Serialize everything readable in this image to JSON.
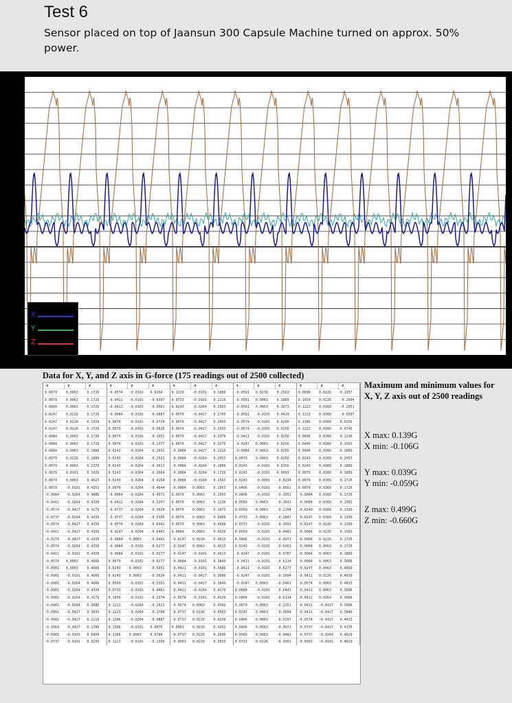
{
  "header": {
    "title": "Test 6",
    "description": "Sensor placed on top of Jaansun 300 Capsule Machine turned on approx. 50% power."
  },
  "chart_data": {
    "type": "line",
    "title": "",
    "xlabel": "",
    "ylabel": "",
    "grid": true,
    "legend_position": "bottom-left",
    "series": [
      {
        "name": "X",
        "color": "#1b1b8c",
        "description_values": {
          "max": 0.139,
          "min": -0.106
        }
      },
      {
        "name": "Y",
        "color": "#2aa8a8",
        "description_values": {
          "max": 0.039,
          "min": -0.059
        }
      },
      {
        "name": "Z",
        "color": "#a0683a",
        "description_values": {
          "max": 0.499,
          "min": -0.66
        }
      }
    ]
  },
  "legend": {
    "items": [
      {
        "label": "X",
        "color": "#2b3bd6"
      },
      {
        "label": "Y",
        "color": "#2fb34a"
      },
      {
        "label": "Z",
        "color": "#e03030"
      }
    ]
  },
  "table": {
    "caption": "Data for X, Y, and Z axis in G-force (175 readings out of 2500 collected)",
    "headers": [
      "x",
      "y",
      "z",
      "x",
      "y",
      "z",
      "x",
      "y",
      "z",
      "x",
      "y",
      "z",
      "x",
      "y",
      "z"
    ],
    "rows": [
      [
        "0.0079",
        "0.0063",
        "0.1726",
        "-0.0574",
        "-0.0101",
        "0.0294",
        "0.1229",
        "-0.0101",
        "0.1889",
        "-0.0501",
        "0.0236",
        "0.2563",
        "0.0896",
        "0.0226",
        "0.1357"
      ],
      [
        "0.0079",
        "0.0063",
        "0.1726",
        "-0.0411",
        "-0.0101",
        "-0.0397",
        "0.0733",
        "-0.0101",
        "0.2216",
        "-0.0501",
        "0.0063",
        "0.1889",
        "0.1059",
        "0.0226",
        "-0.2604"
      ],
      [
        "0.0084",
        "0.0063",
        "0.1726",
        "-0.0411",
        "-0.0101",
        "-0.0561",
        "0.0243",
        "-0.0264",
        "0.2563",
        "-0.0501",
        "0.0063",
        "0.1073",
        "0.1223",
        "0.0389",
        "-0.2051"
      ],
      [
        "0.0247",
        "0.0226",
        "0.1726",
        "-0.0084",
        "-0.0101",
        "-0.0887",
        "0.0079",
        "-0.0427",
        "0.2705",
        "-0.0501",
        "-0.0101",
        "0.0419",
        "0.1223",
        "0.0389",
        "-0.0397"
      ],
      [
        "0.0247",
        "0.0226",
        "0.1339",
        "0.0079",
        "-0.0101",
        "-0.0724",
        "0.0079",
        "-0.0427",
        "0.2563",
        "-0.0574",
        "-0.0101",
        "0.0200",
        "0.1386",
        "0.0389",
        "0.0256"
      ],
      [
        "0.0247",
        "0.0226",
        "0.1726",
        "0.0079",
        "-0.0101",
        "-0.0928",
        "0.0079",
        "-0.0427",
        "0.2563",
        "-0.0574",
        "-0.0101",
        "0.0256",
        "0.1223",
        "0.0389",
        "0.0746"
      ],
      [
        "0.0084",
        "0.0063",
        "0.1726",
        "0.0079",
        "-0.0101",
        "-0.1051",
        "0.0079",
        "-0.0427",
        "0.3379",
        "-0.0411",
        "-0.0101",
        "0.0256",
        "0.0896",
        "0.0389",
        "0.1236"
      ],
      [
        "0.0084",
        "0.0063",
        "0.1726",
        "0.0079",
        "-0.0101",
        "-0.1377",
        "0.0079",
        "-0.0427",
        "0.3379",
        "-0.0247",
        "0.0063",
        "0.0256",
        "0.0406",
        "0.0389",
        "0.1563"
      ],
      [
        "0.0084",
        "0.0063",
        "0.1889",
        "0.0243",
        "-0.0264",
        "-0.2031",
        "-0.0084",
        "-0.0427",
        "0.2216",
        "-0.0084",
        "0.0063",
        "0.0256",
        "0.0406",
        "0.0389",
        "0.1889"
      ],
      [
        "0.0079",
        "0.0226",
        "0.1889",
        "0.0243",
        "-0.0264",
        "-0.2521",
        "-0.0084",
        "-0.0264",
        "0.2053",
        "0.0079",
        "0.0063",
        "0.0256",
        "0.0243",
        "0.0389",
        "0.2053"
      ],
      [
        "0.0079",
        "0.0063",
        "0.2379",
        "0.0243",
        "-0.0264",
        "-0.3011",
        "-0.0084",
        "-0.0264",
        "0.1889",
        "0.0243",
        "-0.0101",
        "0.0256",
        "0.0243",
        "0.0389",
        "0.1889"
      ],
      [
        "0.0079",
        "0.0101",
        "0.1929",
        "0.0243",
        "-0.0264",
        "-0.3664",
        "-0.0084",
        "-0.0264",
        "0.1726",
        "0.0243",
        "-0.0101",
        "0.0093",
        "0.0079",
        "0.0389",
        "0.1889"
      ],
      [
        "0.0079",
        "0.0063",
        "0.4623",
        "0.0243",
        "-0.0264",
        "-0.4154",
        "-0.0084",
        "-0.0264",
        "0.1563",
        "0.0243",
        "-0.0001",
        "-0.0234",
        "0.0079",
        "0.0389",
        "0.1726"
      ],
      [
        "0.0079",
        "-0.0101",
        "0.4353",
        "0.0079",
        "-0.0264",
        "-0.4644",
        "-0.0084",
        "0.0063",
        "0.1563",
        "0.0406",
        "-0.0101",
        "-0.0561",
        "0.0079",
        "0.0389",
        "0.1726"
      ],
      [
        "-0.0084",
        "-0.0264",
        "0.4886",
        "-0.0084",
        "-0.0264",
        "-0.4971",
        "0.0079",
        "0.0063",
        "0.1563",
        "0.0406",
        "-0.0101",
        "-0.1051",
        "-0.0084",
        "0.0389",
        "0.1726"
      ],
      [
        "-0.0411",
        "-0.0264",
        "0.4339",
        "-0.0411",
        "-0.0264",
        "-0.5297",
        "0.0079",
        "0.0063",
        "0.1236",
        "0.0569",
        "0.0063",
        "-0.1541",
        "-0.0084",
        "0.0389",
        "0.1563"
      ],
      [
        "-0.0574",
        "-0.0427",
        "0.4176",
        "-0.0737",
        "-0.0264",
        "-0.5624",
        "0.0079",
        "0.0063",
        "0.1073",
        "0.0569",
        "0.0063",
        "-0.2194",
        "-0.0240",
        "0.0389",
        "0.1399"
      ],
      [
        "-0.0737",
        "-0.0264",
        "0.4339",
        "-0.0737",
        "-0.0264",
        "-0.5356",
        "0.0079",
        "0.0063",
        "0.0909",
        "0.0733",
        "0.0063",
        "-0.2847",
        "-0.0247",
        "0.0389",
        "0.1399"
      ],
      [
        "-0.0574",
        "-0.0427",
        "0.4339",
        "-0.0574",
        "-0.0264",
        "-0.6441",
        "0.0079",
        "0.0063",
        "0.4666",
        "0.0733",
        "-0.0101",
        "-0.3991",
        "-0.0247",
        "0.0226",
        "0.1399"
      ],
      [
        "-0.0411",
        "-0.0427",
        "0.4339",
        "-0.0247",
        "-0.0264",
        "-0.6441",
        "0.0084",
        "0.0063",
        "0.4339",
        "0.0569",
        "-0.0101",
        "-0.4481",
        "-0.0084",
        "0.0226",
        "0.1563"
      ],
      [
        "-0.0274",
        "-0.0427",
        "0.4339",
        "-0.0084",
        "0.0063",
        "-0.6441",
        "-0.0247",
        "0.0226",
        "0.4013",
        "0.0406",
        "-0.0101",
        "-0.4971",
        "-0.0084",
        "0.0226",
        "0.1726"
      ],
      [
        "-0.0574",
        "-0.0264",
        "0.4339",
        "-0.0084",
        "-0.0101",
        "-0.6277",
        "-0.0247",
        "0.0063",
        "0.4013",
        "0.0243",
        "-0.0101",
        "-0.5461",
        "-0.0084",
        "0.0063",
        "0.1726"
      ],
      [
        "-0.0411",
        "-0.0101",
        "0.4339",
        "-0.0084",
        "-0.0101",
        "-0.6277",
        "-0.0247",
        "-0.0101",
        "0.4013",
        "-0.0247",
        "-0.0101",
        "-0.5787",
        "-0.0084",
        "0.0063",
        "0.1889"
      ],
      [
        "-0.0574",
        "0.0063",
        "0.4666",
        "0.0079",
        "-0.0101",
        "-0.6277",
        "-0.0084",
        "-0.0101",
        "0.3849",
        "-0.0411",
        "-0.0101",
        "-0.6114",
        "-0.0084",
        "0.0063",
        "0.3686"
      ],
      [
        "-0.0901",
        "0.0063",
        "0.4666",
        "0.0243",
        "0.0063",
        "-0.5951",
        "-0.0411",
        "-0.0101",
        "0.3686",
        "-0.0411",
        "-0.0101",
        "-0.6277",
        "-0.0247",
        "0.0063",
        "0.4039"
      ],
      [
        "-0.0901",
        "-0.0101",
        "0.4666",
        "0.0243",
        "0.0063",
        "-0.5624",
        "-0.0411",
        "-0.0427",
        "0.3686",
        "-0.0247",
        "-0.0101",
        "-0.5604",
        "-0.0411",
        "0.0226",
        "0.4039"
      ],
      [
        "-0.0901",
        "-0.0264",
        "0.4666",
        "0.0569",
        "-0.0101",
        "-0.5351",
        "-0.0411",
        "-0.0427",
        "0.3849",
        "-0.0247",
        "0.0063",
        "-0.5461",
        "-0.0574",
        "0.0063",
        "0.4013"
      ],
      [
        "-0.0901",
        "-0.0264",
        "0.4339",
        "0.0733",
        "-0.0101",
        "-0.4481",
        "-0.0411",
        "-0.0264",
        "0.4176",
        "0.0084",
        "-0.0101",
        "-0.6441",
        "-0.0411",
        "0.0063",
        "0.3686"
      ],
      [
        "-0.0901",
        "-0.0264",
        "0.4176",
        "0.1059",
        "-0.0101",
        "-0.3374",
        "-0.0574",
        "-0.0101",
        "0.4339",
        "0.0084",
        "-0.0101",
        "-0.6114",
        "-0.0411",
        "0.0264",
        "0.3686"
      ],
      [
        "-0.0901",
        "-0.0264",
        "0.3686",
        "0.1223",
        "-0.0264",
        "-0.2521",
        "-0.0574",
        "0.0063",
        "0.4502",
        "0.0079",
        "0.0063",
        "-0.2351",
        "-0.0411",
        "-0.0427",
        "0.3686"
      ],
      [
        "-0.0901",
        "-0.0427",
        "0.3033",
        "0.1223",
        "-0.0264",
        "-0.1704",
        "-0.0737",
        "0.0226",
        "0.4503",
        "0.0243",
        "0.0063",
        "-0.3604",
        "-0.0411",
        "-0.0427",
        "0.3849"
      ],
      [
        "-0.0901",
        "-0.0427",
        "0.2216",
        "0.1386",
        "-0.0264",
        "-0.0887",
        "-0.0737",
        "0.0226",
        "0.4339",
        "0.0406",
        "0.0063",
        "-0.5297",
        "-0.0574",
        "-0.0427",
        "0.4013"
      ],
      [
        "-0.1064",
        "-0.0427",
        "0.1399",
        "0.1386",
        "-0.0101",
        "0.0075",
        "0.0901",
        "0.0226",
        "0.4202",
        "0.0406",
        "0.0063",
        "-0.4971",
        "-0.0737",
        "-0.0427",
        "0.4176"
      ],
      [
        "-0.0901",
        "-0.0101",
        "0.0909",
        "0.1386",
        "0.0063",
        "0.0788",
        "-0.0737",
        "0.0226",
        "0.3686",
        "0.0569",
        "0.0063",
        "-0.4481",
        "-0.0737",
        "-0.0264",
        "0.4829"
      ],
      [
        "-0.0737",
        "-0.0101",
        "0.0256",
        "0.1223",
        "-0.0101",
        "-0.1399",
        "-0.0901",
        "0.0226",
        "0.3033",
        "0.0733",
        "0.0226",
        "-0.3991",
        "-0.0901",
        "-0.0101",
        "0.4829"
      ]
    ]
  },
  "stats": {
    "intro": "Maximum and minimum values for X, Y, Z axis out of 2500 readings",
    "x_max": "X max: 0.139G",
    "x_min": "X min: -0.106G",
    "y_max": "Y max: 0.039G",
    "y_min": "Y min: -0.059G",
    "z_max": "Z max: 0.499G",
    "z_min": "Z min: -0.660G"
  }
}
